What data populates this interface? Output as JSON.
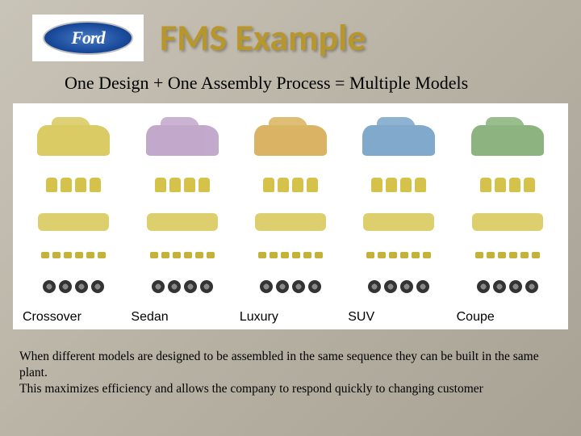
{
  "logo": {
    "brand_text": "Ford",
    "oval_bg": "#1a4b9c",
    "text_color": "#ffffff"
  },
  "title": {
    "text": "FMS Example",
    "color": "#b8962e",
    "fontsize": 46
  },
  "subtitle": {
    "text": "One Design + One Assembly Process = Multiple Models",
    "fontsize": 22
  },
  "models": [
    {
      "label": "Crossover",
      "body_color": "#d4c24a"
    },
    {
      "label": "Sedan",
      "body_color": "#b89bc4"
    },
    {
      "label": "Luxury",
      "body_color": "#d4a84a"
    },
    {
      "label": "SUV",
      "body_color": "#6a9bc4"
    },
    {
      "label": "Coupe",
      "body_color": "#7aa86a"
    }
  ],
  "common_parts_color": "#d4c24a",
  "footer": {
    "line1": "When different models are designed to be assembled in the same sequence they can be built in the same plant.",
    "line2": "This maximizes efficiency and allows the company to respond quickly to changing customer"
  },
  "background_gradient": [
    "#c9c4b8",
    "#a8a294"
  ]
}
